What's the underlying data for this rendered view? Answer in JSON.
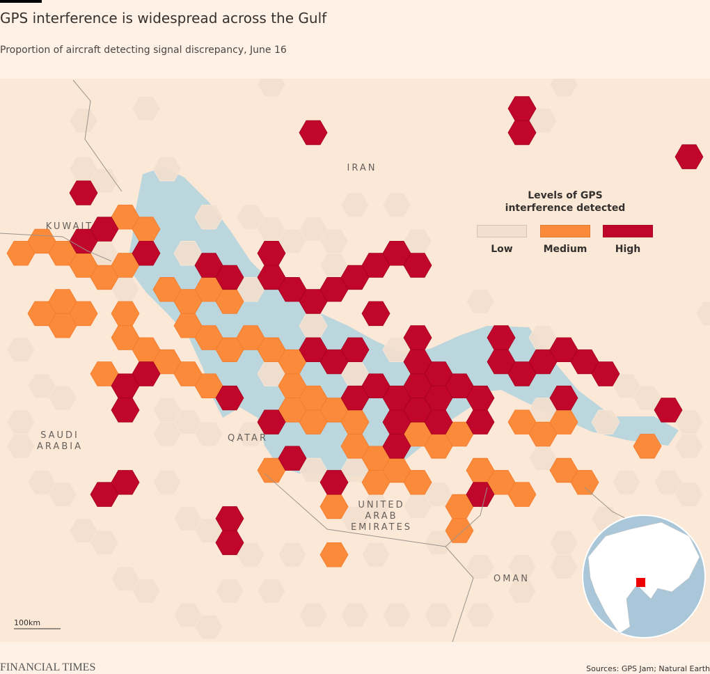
{
  "header": {
    "title": "GPS interference is widespread across the Gulf",
    "subtitle": "Proportion of aircraft detecting signal discrepancy, June 16"
  },
  "legend": {
    "title": "Levels of GPS interference detected",
    "items": [
      {
        "label": "Low",
        "color": "#f3dfcd"
      },
      {
        "label": "Medium",
        "color": "#fb8b3b"
      },
      {
        "label": "High",
        "color": "#c0062b"
      }
    ]
  },
  "map_labels": [
    "KUWAIT",
    "IRAN",
    "SAUDI ARABIA",
    "QATAR",
    "UNITED ARAB EMIRATES",
    "OMAN"
  ],
  "scale_bar": "100km",
  "footer": {
    "brand": "FINANCIAL TIMES",
    "source": "Sources: GPS Jam; Natural Earth"
  }
}
